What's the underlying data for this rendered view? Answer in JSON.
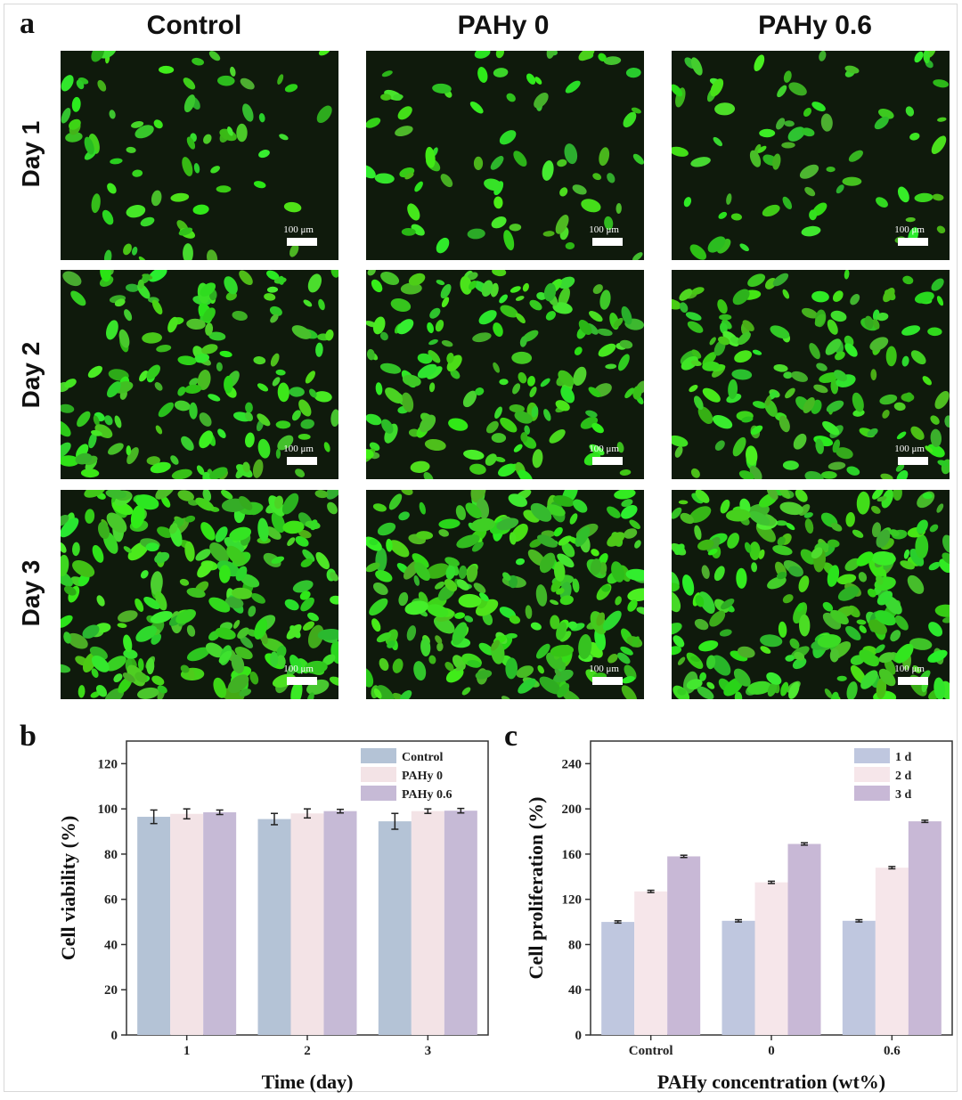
{
  "panel_labels": {
    "a": "a",
    "b": "b",
    "c": "c"
  },
  "columns": [
    "Control",
    "PAHy 0",
    "PAHy 0.6"
  ],
  "rows": [
    "Day 1",
    "Day 2",
    "Day 3"
  ],
  "scale_bar_label": "100 μm",
  "chart_data": [
    {
      "type": "bar",
      "panel": "b",
      "xlabel": "Time (day)",
      "ylabel": "Cell viability (%)",
      "categories": [
        "1",
        "2",
        "3"
      ],
      "ylim": [
        0,
        130
      ],
      "yticks": [
        0,
        20,
        40,
        60,
        80,
        100,
        120
      ],
      "legend_position": "top-right",
      "series": [
        {
          "name": "Control",
          "color": "#b4c3d6",
          "values": [
            96.5,
            95.5,
            94.5
          ],
          "errors": [
            3,
            2.5,
            3.5
          ]
        },
        {
          "name": "PAHy 0",
          "color": "#f3e3e6",
          "values": [
            97.8,
            98,
            99
          ],
          "errors": [
            2.2,
            2,
            1
          ]
        },
        {
          "name": "PAHy 0.6",
          "color": "#c6bad6",
          "values": [
            98.5,
            99,
            99.2
          ],
          "errors": [
            1,
            0.8,
            1
          ]
        }
      ]
    },
    {
      "type": "bar",
      "panel": "c",
      "xlabel": "PAHy concentration (wt%)",
      "ylabel": "Cell proliferation (%)",
      "categories": [
        "Control",
        "0",
        "0.6"
      ],
      "ylim": [
        0,
        260
      ],
      "yticks": [
        0,
        40,
        80,
        120,
        160,
        200,
        240
      ],
      "legend_position": "top-right",
      "series": [
        {
          "name": "1 d",
          "color": "#bfc7df",
          "values": [
            100,
            101,
            101
          ],
          "errors": [
            1,
            1,
            1
          ]
        },
        {
          "name": "2 d",
          "color": "#f6e6ea",
          "values": [
            127,
            135,
            148
          ],
          "errors": [
            1,
            1,
            1
          ]
        },
        {
          "name": "3 d",
          "color": "#c8b8d6",
          "values": [
            158,
            169,
            189
          ],
          "errors": [
            1,
            1,
            1
          ]
        }
      ]
    }
  ]
}
